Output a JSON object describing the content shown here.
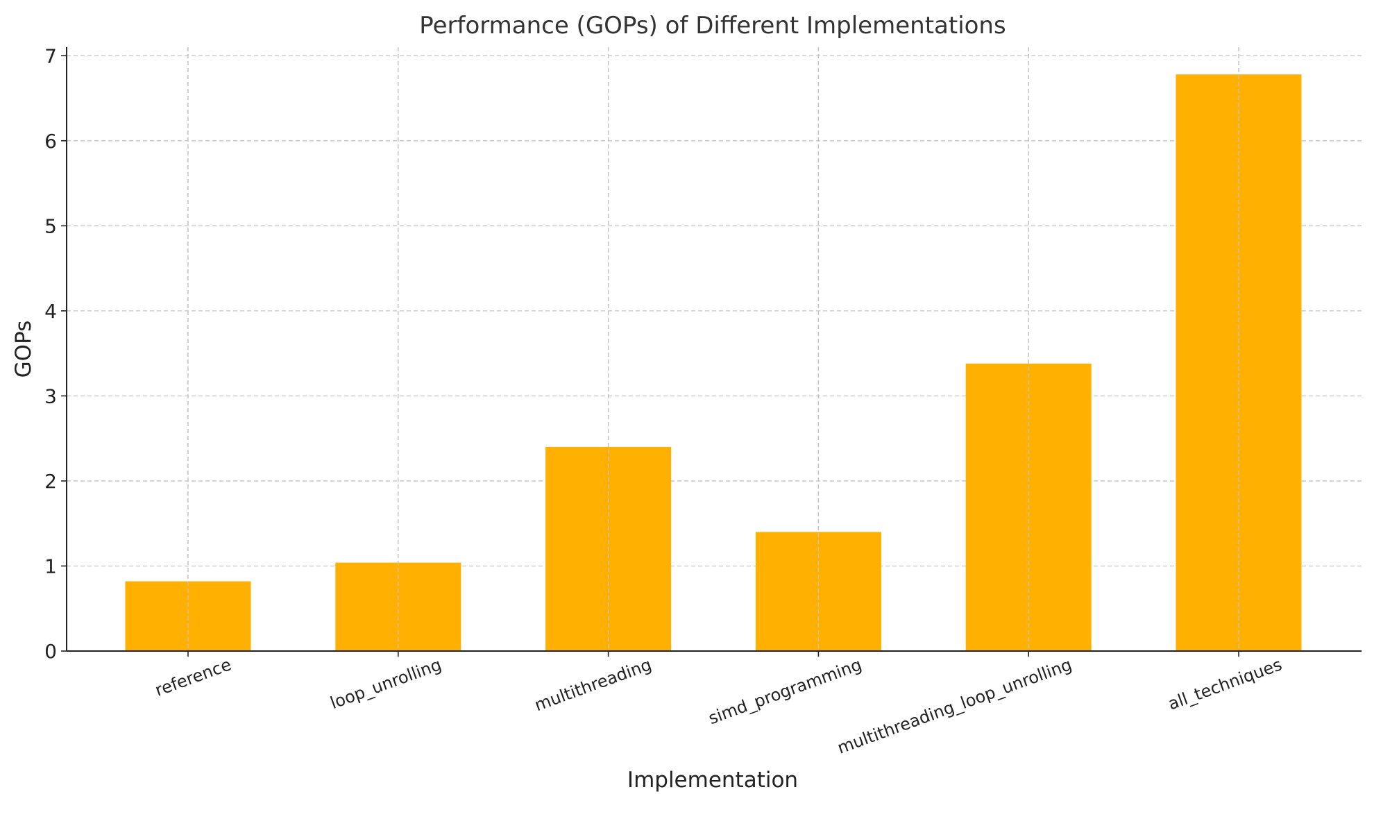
{
  "chart_data": {
    "type": "bar",
    "title": "Performance (GOPs) of Different Implementations",
    "xlabel": "Implementation",
    "ylabel": "GOPs",
    "categories": [
      "reference",
      "loop_unrolling",
      "multithreading",
      "simd_programming",
      "multithreading_loop_unrolling",
      "all_techniques"
    ],
    "values": [
      0.82,
      1.04,
      2.4,
      1.4,
      3.38,
      6.78
    ],
    "ylim": [
      0,
      7.1
    ],
    "yticks": [
      0,
      1,
      2,
      3,
      4,
      5,
      6,
      7
    ],
    "ytick_labels": [
      "0",
      "1",
      "2",
      "3",
      "4",
      "5",
      "6",
      "7"
    ],
    "grid": true,
    "bar_color": "#ffb000",
    "xtick_rotation": 20
  }
}
